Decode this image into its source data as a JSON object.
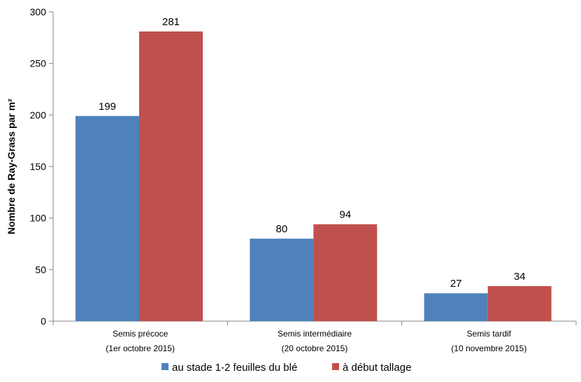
{
  "chart_data": {
    "type": "bar",
    "title": "",
    "xlabel": "",
    "ylabel": "Nombre de Ray-Grass par m²",
    "ylim": [
      0,
      300
    ],
    "yticks": [
      0,
      50,
      100,
      150,
      200,
      250,
      300
    ],
    "grid": false,
    "legend_position": "bottom",
    "categories": [
      [
        "Semis précoce",
        "(1er octobre 2015)"
      ],
      [
        "Semis intermédiaire",
        "(20 octobre 2015)"
      ],
      [
        "Semis tardif",
        "(10 novembre 2015)"
      ]
    ],
    "series": [
      {
        "name": "au stade 1-2 feuilles du blé",
        "color": "#4F81BD",
        "values": [
          199,
          80,
          27
        ]
      },
      {
        "name": "à début tallage",
        "color": "#C0504D",
        "values": [
          281,
          94,
          34
        ]
      }
    ]
  }
}
